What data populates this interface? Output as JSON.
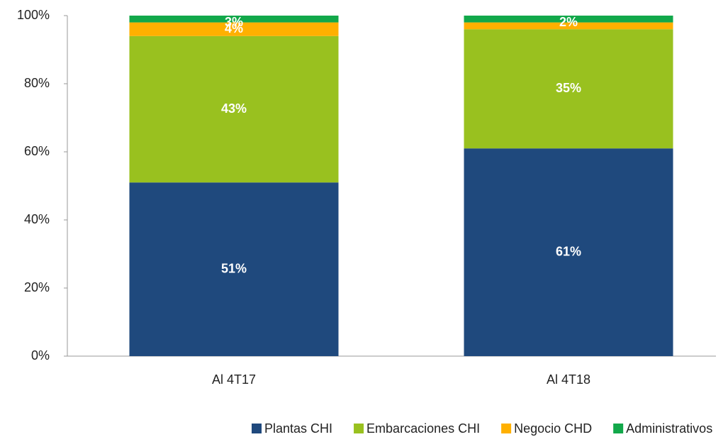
{
  "chart_data": {
    "type": "stacked_bar",
    "categories": [
      "Al 4T17",
      "Al 4T18"
    ],
    "series": [
      {
        "name": "Plantas CHI",
        "color": "#1f497d",
        "values": [
          51,
          61
        ],
        "value_labels": [
          "51%",
          "61%"
        ]
      },
      {
        "name": "Embarcaciones CHI",
        "color": "#99c11f",
        "values": [
          43,
          35
        ],
        "value_labels": [
          "43%",
          "35%"
        ]
      },
      {
        "name": "Negocio CHD",
        "color": "#ffb000",
        "values": [
          4,
          2
        ],
        "value_labels": [
          "4%",
          null
        ]
      },
      {
        "name": "Administrativos",
        "color": "#12a84a",
        "values": [
          3,
          2
        ],
        "value_labels": [
          "3%",
          "2%"
        ]
      }
    ],
    "ylim": [
      0,
      100
    ],
    "yticks": [
      {
        "value": 0,
        "label": "0%"
      },
      {
        "value": 20,
        "label": "20%"
      },
      {
        "value": 40,
        "label": "40%"
      },
      {
        "value": 60,
        "label": "60%"
      },
      {
        "value": 80,
        "label": "80%"
      },
      {
        "value": 100,
        "label": "100%"
      }
    ],
    "grid": false,
    "legend": "bottom"
  }
}
